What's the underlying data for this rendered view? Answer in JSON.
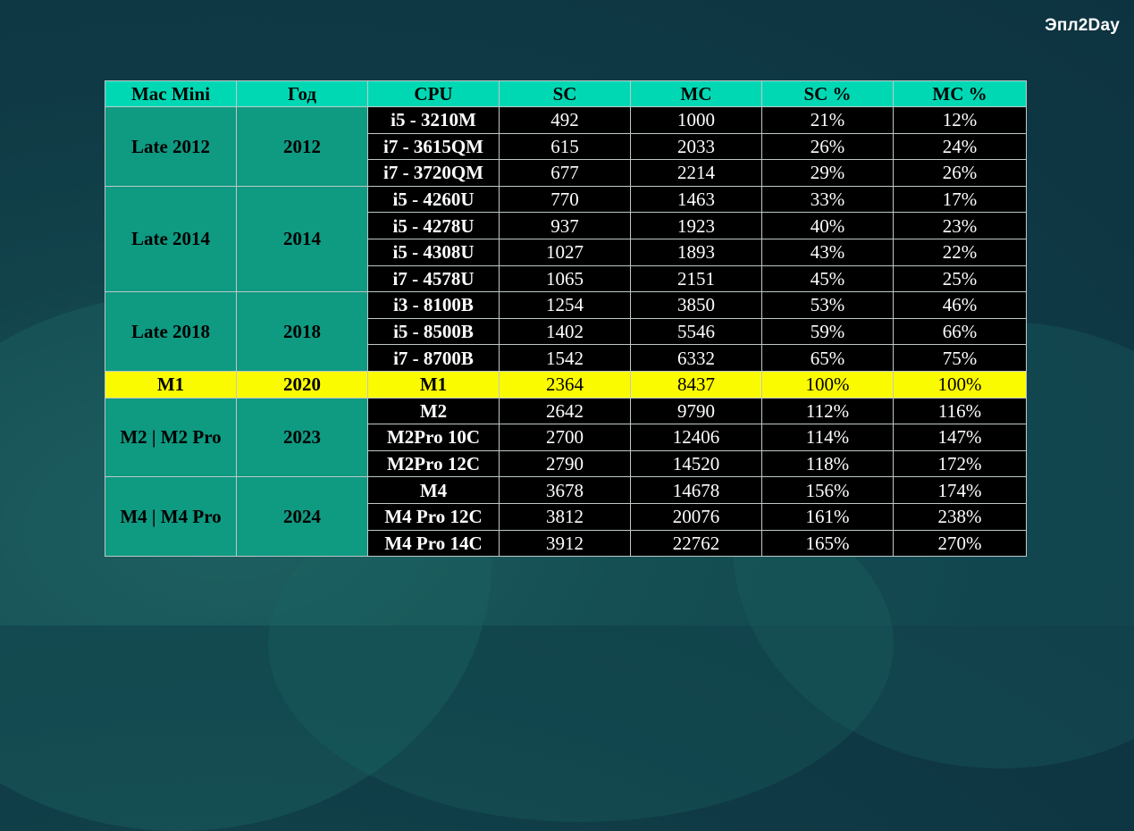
{
  "brand": {
    "logo": "Эпл2Day"
  },
  "chart_data": {
    "type": "table",
    "columns": [
      "Mac Mini",
      "Год",
      "CPU",
      "SC",
      "MC",
      "SC %",
      "MC %"
    ],
    "groups": [
      {
        "model": "Late 2012",
        "year": "2012",
        "rows": [
          {
            "cpu": "i5 - 3210M",
            "sc": "492",
            "mc": "1000",
            "sc_pct": "21%",
            "mc_pct": "12%"
          },
          {
            "cpu": "i7 - 3615QM",
            "sc": "615",
            "mc": "2033",
            "sc_pct": "26%",
            "mc_pct": "24%"
          },
          {
            "cpu": "i7 - 3720QM",
            "sc": "677",
            "mc": "2214",
            "sc_pct": "29%",
            "mc_pct": "26%"
          }
        ]
      },
      {
        "model": "Late 2014",
        "year": "2014",
        "rows": [
          {
            "cpu": "i5 - 4260U",
            "sc": "770",
            "mc": "1463",
            "sc_pct": "33%",
            "mc_pct": "17%"
          },
          {
            "cpu": "i5 - 4278U",
            "sc": "937",
            "mc": "1923",
            "sc_pct": "40%",
            "mc_pct": "23%"
          },
          {
            "cpu": "i5 - 4308U",
            "sc": "1027",
            "mc": "1893",
            "sc_pct": "43%",
            "mc_pct": "22%"
          },
          {
            "cpu": "i7 - 4578U",
            "sc": "1065",
            "mc": "2151",
            "sc_pct": "45%",
            "mc_pct": "25%"
          }
        ]
      },
      {
        "model": "Late 2018",
        "year": "2018",
        "rows": [
          {
            "cpu": "i3 - 8100B",
            "sc": "1254",
            "mc": "3850",
            "sc_pct": "53%",
            "mc_pct": "46%"
          },
          {
            "cpu": "i5 - 8500B",
            "sc": "1402",
            "mc": "5546",
            "sc_pct": "59%",
            "mc_pct": "66%"
          },
          {
            "cpu": "i7 - 8700B",
            "sc": "1542",
            "mc": "6332",
            "sc_pct": "65%",
            "mc_pct": "75%"
          }
        ]
      },
      {
        "model": "M1",
        "year": "2020",
        "highlight": true,
        "rows": [
          {
            "cpu": "M1",
            "sc": "2364",
            "mc": "8437",
            "sc_pct": "100%",
            "mc_pct": "100%"
          }
        ]
      },
      {
        "model": "M2 | M2 Pro",
        "year": "2023",
        "rows": [
          {
            "cpu": "M2",
            "sc": "2642",
            "mc": "9790",
            "sc_pct": "112%",
            "mc_pct": "116%"
          },
          {
            "cpu": "M2Pro 10C",
            "sc": "2700",
            "mc": "12406",
            "sc_pct": "114%",
            "mc_pct": "147%"
          },
          {
            "cpu": "M2Pro 12C",
            "sc": "2790",
            "mc": "14520",
            "sc_pct": "118%",
            "mc_pct": "172%"
          }
        ]
      },
      {
        "model": "M4 | M4 Pro",
        "year": "2024",
        "rows": [
          {
            "cpu": "M4",
            "sc": "3678",
            "mc": "14678",
            "sc_pct": "156%",
            "mc_pct": "174%"
          },
          {
            "cpu": "M4 Pro 12C",
            "sc": "3812",
            "mc": "20076",
            "sc_pct": "161%",
            "mc_pct": "238%"
          },
          {
            "cpu": "M4 Pro 14C",
            "sc": "3912",
            "mc": "22762",
            "sc_pct": "165%",
            "mc_pct": "270%"
          }
        ]
      }
    ]
  },
  "colors": {
    "header_bg": "#00d8b4",
    "group_bg": "#0f9a82",
    "row_bg": "#000000",
    "highlight_bg": "#fbfb00"
  }
}
